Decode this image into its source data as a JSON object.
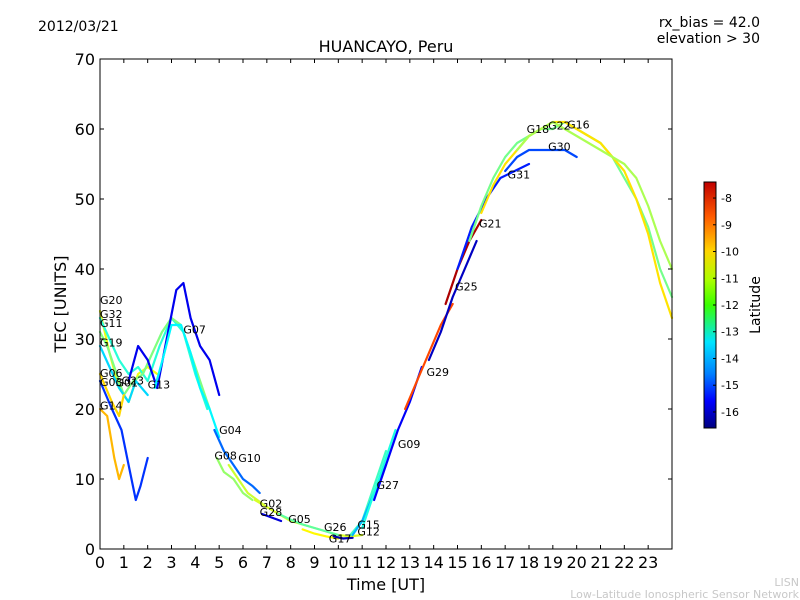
{
  "header": {
    "date": "2012/03/21",
    "rx_bias": "rx_bias = 42.0",
    "elevation": "elevation > 30"
  },
  "footer": {
    "org_short": "LISN",
    "org_full": "Low-Latitude Ionospheric Sensor Network"
  },
  "colors": {
    "plot_background": "#ffffff",
    "axes": "#000000",
    "watermark": "#c8c8c8"
  },
  "colorbar": {
    "label": "Latitude",
    "range": [
      -16.6,
      -7.4
    ],
    "ticks": [
      "-8",
      "-9",
      "-10",
      "-11",
      "-12",
      "-13",
      "-14",
      "-15",
      "-16"
    ],
    "tick_values": [
      -8,
      -9,
      -10,
      -11,
      -12,
      -13,
      -14,
      -15,
      -16
    ],
    "colormap": "jet"
  },
  "chart_data": {
    "type": "line",
    "title": "HUANCAYO, Peru",
    "xlabel": "Time [UT]",
    "ylabel": "TEC [UNITS]",
    "xlim": [
      0,
      24
    ],
    "ylim": [
      0,
      70
    ],
    "xticks": [
      "0",
      "1",
      "2",
      "3",
      "4",
      "5",
      "6",
      "7",
      "8",
      "9",
      "10",
      "11",
      "12",
      "13",
      "14",
      "15",
      "16",
      "17",
      "18",
      "19",
      "20",
      "21",
      "22",
      "23"
    ],
    "yticks": [
      "0",
      "10",
      "20",
      "30",
      "40",
      "50",
      "60",
      "70"
    ],
    "grid": false,
    "legend": "none",
    "series": [
      {
        "label": "G20",
        "lat": -11.0,
        "points": [
          [
            0,
            34
          ],
          [
            0.4,
            28
          ],
          [
            0.8,
            23
          ],
          [
            1.2,
            21
          ],
          [
            1.6,
            25
          ],
          [
            2.0,
            26
          ],
          [
            2.4,
            25
          ]
        ]
      },
      {
        "label": "G32",
        "lat": -12.8,
        "points": [
          [
            0,
            33
          ],
          [
            0.4,
            30
          ],
          [
            0.8,
            27
          ],
          [
            1.2,
            25
          ],
          [
            1.6,
            26
          ],
          [
            2.0,
            24
          ],
          [
            2.5,
            29
          ],
          [
            3.0,
            33
          ],
          [
            3.5,
            31
          ],
          [
            4.0,
            25
          ],
          [
            4.5,
            20
          ]
        ]
      },
      {
        "label": "G11",
        "lat": -12.0,
        "points": [
          [
            0,
            31
          ],
          [
            0.3,
            29
          ],
          [
            0.7,
            25
          ],
          [
            1.0,
            22
          ],
          [
            1.4,
            24
          ],
          [
            1.8,
            25
          ],
          [
            2.2,
            28
          ],
          [
            2.6,
            31
          ],
          [
            3.0,
            33
          ],
          [
            3.4,
            32
          ],
          [
            3.8,
            28
          ],
          [
            4.2,
            24
          ],
          [
            4.6,
            20
          ]
        ]
      },
      {
        "label": "G19",
        "lat": -13.5,
        "points": [
          [
            0,
            29
          ],
          [
            0.4,
            26
          ],
          [
            0.8,
            23
          ],
          [
            1.2,
            21
          ],
          [
            1.5,
            24
          ],
          [
            2.0,
            22
          ]
        ]
      },
      {
        "label": "G06",
        "lat": -10.5,
        "points": [
          [
            0,
            25
          ],
          [
            0.5,
            21
          ],
          [
            0.8,
            19
          ],
          [
            1.0,
            22
          ]
        ]
      },
      {
        "label": "G03",
        "lat": -15.0,
        "points": [
          [
            0,
            24
          ],
          [
            0.5,
            20
          ],
          [
            0.9,
            17
          ],
          [
            1.2,
            12
          ],
          [
            1.5,
            7
          ],
          [
            1.7,
            9
          ],
          [
            2.0,
            13
          ]
        ]
      },
      {
        "label": "G14",
        "lat": -10.2,
        "points": [
          [
            0,
            20
          ],
          [
            0.3,
            19
          ],
          [
            0.6,
            13
          ],
          [
            0.8,
            10
          ],
          [
            1.0,
            12
          ]
        ]
      },
      {
        "label": "G13",
        "lat": -15.6,
        "points": [
          [
            1.2,
            24
          ],
          [
            1.6,
            29
          ],
          [
            2.0,
            27
          ],
          [
            2.4,
            23
          ],
          [
            2.8,
            30
          ],
          [
            3.2,
            37
          ],
          [
            3.5,
            38
          ],
          [
            3.8,
            33
          ],
          [
            4.2,
            29
          ],
          [
            4.6,
            27
          ],
          [
            5.0,
            22
          ]
        ]
      },
      {
        "label": "G07",
        "lat": -13.2,
        "points": [
          [
            2.3,
            23
          ],
          [
            2.7,
            28
          ],
          [
            3.0,
            32
          ],
          [
            3.4,
            32
          ],
          [
            3.8,
            28
          ],
          [
            4.2,
            23
          ],
          [
            4.6,
            20
          ],
          [
            5.0,
            16
          ]
        ]
      },
      {
        "label": "G04",
        "lat": -14.5,
        "points": [
          [
            4.8,
            17
          ],
          [
            5.2,
            14
          ],
          [
            5.6,
            12
          ],
          [
            6.0,
            10
          ],
          [
            6.4,
            9
          ],
          [
            6.7,
            8
          ]
        ]
      },
      {
        "label": "G08",
        "lat": -11.8,
        "points": [
          [
            4.9,
            13
          ],
          [
            5.2,
            11
          ],
          [
            5.6,
            10
          ],
          [
            6.0,
            8
          ],
          [
            6.4,
            7
          ]
        ]
      },
      {
        "label": "G10",
        "lat": -11.3,
        "points": [
          [
            5.4,
            12
          ],
          [
            5.8,
            10
          ],
          [
            6.2,
            8
          ],
          [
            6.6,
            7
          ],
          [
            7.0,
            6
          ]
        ]
      },
      {
        "label": "G02",
        "lat": -11.2,
        "points": [
          [
            6.5,
            7
          ],
          [
            7.0,
            6
          ],
          [
            7.5,
            5
          ],
          [
            8.0,
            4
          ],
          [
            8.5,
            3.5
          ],
          [
            9.0,
            3
          ],
          [
            9.5,
            2.5
          ],
          [
            10.0,
            2
          ],
          [
            10.5,
            1.8
          ],
          [
            11.0,
            2
          ]
        ]
      },
      {
        "label": "G28",
        "lat": -15.8,
        "points": [
          [
            6.8,
            5
          ],
          [
            7.2,
            4.5
          ],
          [
            7.6,
            4
          ]
        ]
      },
      {
        "label": "G05",
        "lat": -12.3,
        "points": [
          [
            7.5,
            5
          ],
          [
            8.0,
            4.2
          ],
          [
            8.5,
            3.5
          ],
          [
            9.0,
            3
          ],
          [
            9.5,
            2.5
          ],
          [
            10.0,
            2
          ]
        ]
      },
      {
        "label": "G26",
        "lat": -10.8,
        "points": [
          [
            8.5,
            2.8
          ],
          [
            9.0,
            2.2
          ],
          [
            9.5,
            1.8
          ],
          [
            10.0,
            1.5
          ]
        ]
      },
      {
        "label": "G17",
        "lat": -16.2,
        "points": [
          [
            9.8,
            1.8
          ],
          [
            10.2,
            1.5
          ],
          [
            10.6,
            1.6
          ]
        ]
      },
      {
        "label": "G15",
        "lat": -12.6,
        "points": [
          [
            10.5,
            2
          ],
          [
            11.0,
            4
          ],
          [
            11.5,
            9
          ],
          [
            12.0,
            14
          ]
        ]
      },
      {
        "label": "G12",
        "lat": -13.8,
        "points": [
          [
            10.6,
            2
          ],
          [
            11.0,
            4
          ],
          [
            11.5,
            8
          ],
          [
            12.0,
            12
          ]
        ]
      },
      {
        "label": "G27",
        "lat": -12.9,
        "points": [
          [
            11.0,
            3
          ],
          [
            11.5,
            8
          ],
          [
            12.0,
            13
          ],
          [
            12.4,
            17
          ]
        ]
      },
      {
        "label": "G09",
        "lat": -15.5,
        "points": [
          [
            11.5,
            7
          ],
          [
            12.0,
            12
          ],
          [
            12.5,
            17
          ],
          [
            13.0,
            21
          ],
          [
            13.5,
            26
          ]
        ]
      },
      {
        "label": "G29",
        "lat": -9.2,
        "points": [
          [
            12.8,
            20
          ],
          [
            13.3,
            24
          ],
          [
            13.8,
            28
          ],
          [
            14.3,
            32
          ],
          [
            14.8,
            35
          ]
        ]
      },
      {
        "label": "G25",
        "lat": -16.0,
        "points": [
          [
            13.8,
            27
          ],
          [
            14.3,
            31
          ],
          [
            14.8,
            36
          ],
          [
            15.3,
            40
          ],
          [
            15.8,
            44
          ]
        ]
      },
      {
        "label": "G21",
        "lat": -7.8,
        "points": [
          [
            14.5,
            35
          ],
          [
            15.0,
            40
          ],
          [
            15.5,
            44
          ],
          [
            16.0,
            47
          ]
        ]
      },
      {
        "label": "G31",
        "lat": -15.2,
        "points": [
          [
            15.0,
            40
          ],
          [
            15.6,
            46
          ],
          [
            16.2,
            50
          ],
          [
            16.8,
            53
          ],
          [
            17.4,
            54
          ],
          [
            18.0,
            55
          ]
        ]
      },
      {
        "label": "G18",
        "lat": -12.1,
        "points": [
          [
            15.5,
            44
          ],
          [
            16.0,
            49
          ],
          [
            16.5,
            53
          ],
          [
            17.0,
            56
          ],
          [
            17.5,
            58
          ],
          [
            18.0,
            59
          ],
          [
            18.5,
            60
          ],
          [
            19.0,
            60
          ],
          [
            19.5,
            61
          ],
          [
            20.0,
            60
          ],
          [
            20.5,
            59
          ],
          [
            21.0,
            58
          ],
          [
            21.5,
            56
          ],
          [
            22.0,
            53
          ],
          [
            22.5,
            50
          ],
          [
            23.0,
            46
          ],
          [
            23.5,
            40
          ],
          [
            24,
            36
          ]
        ]
      },
      {
        "label": "G22",
        "lat": -10.6,
        "points": [
          [
            16.0,
            48
          ],
          [
            16.5,
            52
          ],
          [
            17.0,
            55
          ],
          [
            17.5,
            57
          ],
          [
            18.0,
            59
          ],
          [
            18.5,
            60
          ],
          [
            19.0,
            61
          ],
          [
            19.5,
            61
          ],
          [
            20.0,
            60
          ],
          [
            20.5,
            59
          ],
          [
            21.0,
            58
          ],
          [
            21.5,
            56
          ],
          [
            22.0,
            54
          ],
          [
            22.5,
            50
          ],
          [
            23.0,
            45
          ],
          [
            23.5,
            38
          ],
          [
            24,
            33
          ]
        ]
      },
      {
        "label": "G30",
        "lat": -14.8,
        "points": [
          [
            17.0,
            54
          ],
          [
            17.5,
            56
          ],
          [
            18.0,
            57
          ],
          [
            18.5,
            57
          ],
          [
            19.0,
            57
          ],
          [
            19.5,
            57
          ],
          [
            20.0,
            56
          ]
        ]
      },
      {
        "label": "G16",
        "lat": -11.6,
        "points": [
          [
            17.5,
            57
          ],
          [
            18.0,
            59
          ],
          [
            18.5,
            60
          ],
          [
            19.0,
            61
          ],
          [
            19.5,
            60
          ],
          [
            20.0,
            59
          ],
          [
            20.5,
            58
          ],
          [
            21.0,
            57
          ],
          [
            21.5,
            56
          ],
          [
            22.0,
            55
          ],
          [
            22.5,
            53
          ],
          [
            23.0,
            49
          ],
          [
            23.5,
            44
          ],
          [
            24,
            40
          ]
        ]
      }
    ],
    "annotations": [
      {
        "text": "G20",
        "x": 0.0,
        "y": 35.0
      },
      {
        "text": "G32",
        "x": 0.0,
        "y": 33.0
      },
      {
        "text": "G11",
        "x": 0.0,
        "y": 31.7
      },
      {
        "text": "G19",
        "x": 0.0,
        "y": 28.9
      },
      {
        "text": "G06",
        "x": 0.0,
        "y": 24.6
      },
      {
        "text": "G03",
        "x": 0.0,
        "y": 23.3
      },
      {
        "text": "G14",
        "x": 0.0,
        "y": 19.9
      },
      {
        "text": "G23",
        "x": 0.9,
        "y": 23.5
      },
      {
        "text": "G01",
        "x": 0.65,
        "y": 23.2
      },
      {
        "text": "G13",
        "x": 2.0,
        "y": 22.9
      },
      {
        "text": "G07",
        "x": 3.5,
        "y": 30.8
      },
      {
        "text": "G04",
        "x": 5.0,
        "y": 16.4
      },
      {
        "text": "G08",
        "x": 4.8,
        "y": 12.8
      },
      {
        "text": "G10",
        "x": 5.8,
        "y": 12.4
      },
      {
        "text": "G02",
        "x": 6.7,
        "y": 5.9
      },
      {
        "text": "G28",
        "x": 6.7,
        "y": 4.7
      },
      {
        "text": "G05",
        "x": 7.9,
        "y": 3.7
      },
      {
        "text": "G26",
        "x": 9.4,
        "y": 2.6
      },
      {
        "text": "G17",
        "x": 9.6,
        "y": 0.9
      },
      {
        "text": "G15",
        "x": 10.8,
        "y": 2.9
      },
      {
        "text": "G12",
        "x": 10.8,
        "y": 1.9
      },
      {
        "text": "G27",
        "x": 11.6,
        "y": 8.6
      },
      {
        "text": "G09",
        "x": 12.5,
        "y": 14.4
      },
      {
        "text": "G29",
        "x": 13.7,
        "y": 24.7
      },
      {
        "text": "G25",
        "x": 14.9,
        "y": 36.9
      },
      {
        "text": "G21",
        "x": 15.9,
        "y": 45.9
      },
      {
        "text": "G31",
        "x": 17.1,
        "y": 52.9
      },
      {
        "text": "G18",
        "x": 17.9,
        "y": 59.4
      },
      {
        "text": "G22",
        "x": 18.8,
        "y": 59.9
      },
      {
        "text": "G16",
        "x": 19.6,
        "y": 60.1
      },
      {
        "text": "G30",
        "x": 18.8,
        "y": 56.9
      }
    ]
  }
}
